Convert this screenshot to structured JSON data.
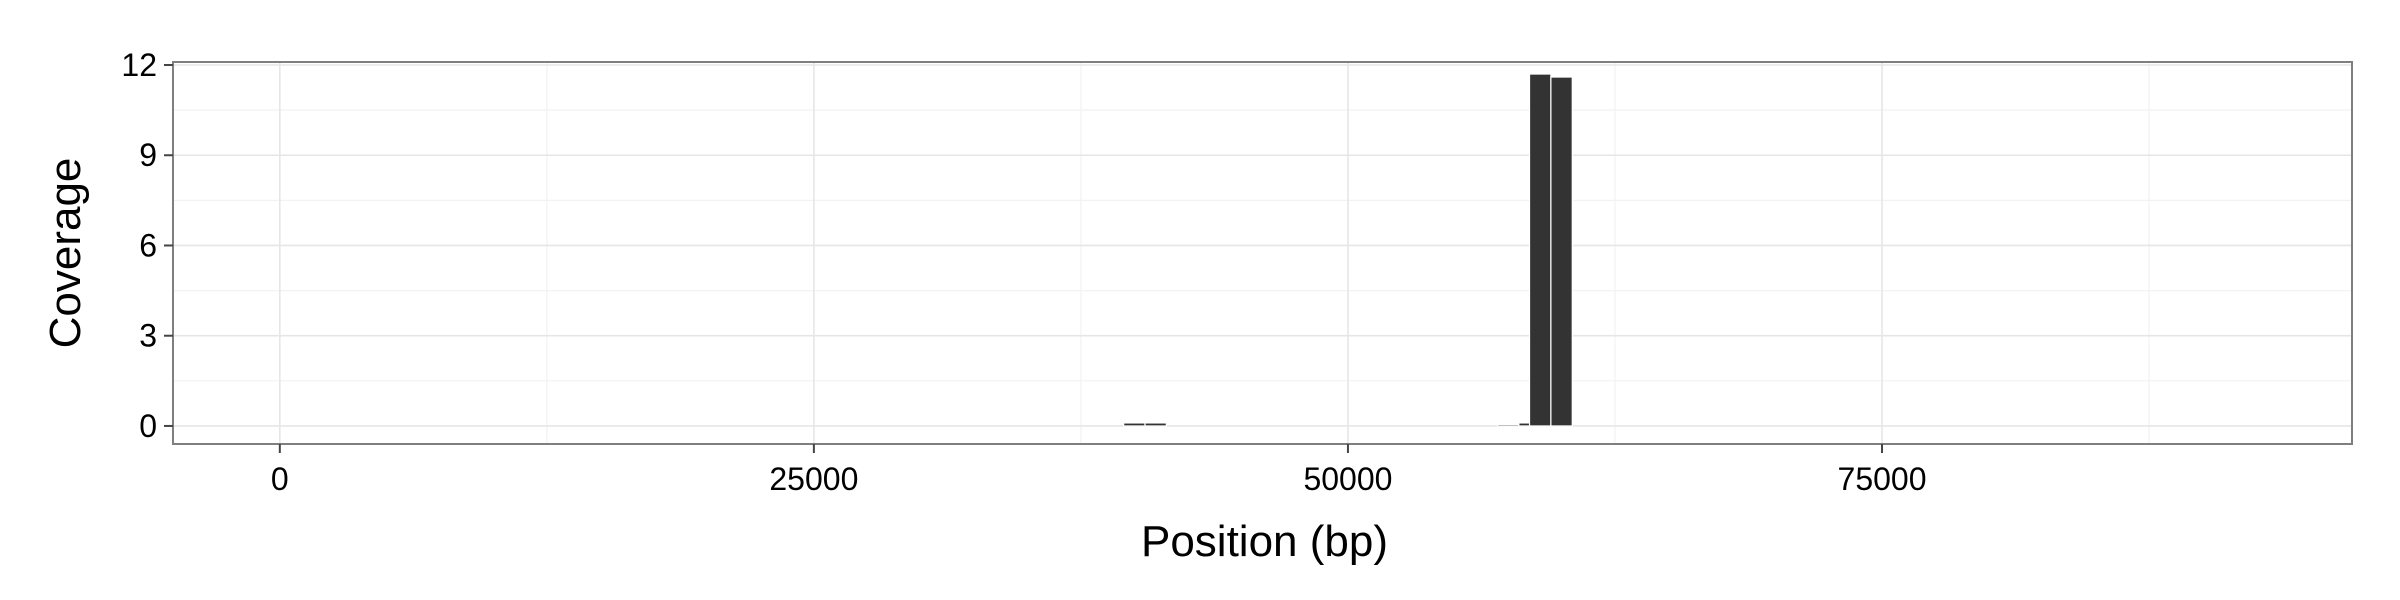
{
  "chart_data": {
    "type": "bar",
    "title": "",
    "xlabel": "Position (bp)",
    "ylabel": "Coverage",
    "xlim": [
      -5000,
      97000
    ],
    "ylim": [
      -0.6,
      12.1
    ],
    "x_ticks": [
      0,
      25000,
      50000,
      75000
    ],
    "x_tick_labels": [
      "0",
      "25000",
      "50000",
      "75000"
    ],
    "y_ticks": [
      0,
      3,
      6,
      9,
      12
    ],
    "y_tick_labels": [
      "0",
      "3",
      "6",
      "9",
      "12"
    ],
    "grid": true,
    "legend": "none",
    "bar_width": 1000,
    "points": [
      {
        "x": 40000,
        "y": 0.1
      },
      {
        "x": 41000,
        "y": 0.1
      },
      {
        "x": 57500,
        "y": 0.05
      },
      {
        "x": 58500,
        "y": 0.1
      },
      {
        "x": 59000,
        "y": 11.7
      },
      {
        "x": 60000,
        "y": 11.6
      }
    ],
    "colors": {
      "bar": "#333333",
      "panel_border": "#7f7f7f",
      "grid_major": "#e6e6e6",
      "grid_minor": "#f2f2f2",
      "text": "#000000"
    }
  }
}
